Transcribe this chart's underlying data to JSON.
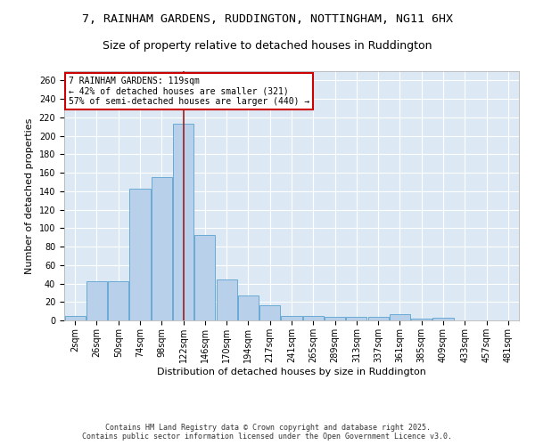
{
  "title_line1": "7, RAINHAM GARDENS, RUDDINGTON, NOTTINGHAM, NG11 6HX",
  "title_line2": "Size of property relative to detached houses in Ruddington",
  "xlabel": "Distribution of detached houses by size in Ruddington",
  "ylabel": "Number of detached properties",
  "bar_color": "#b8d0ea",
  "bar_edge_color": "#6aaad4",
  "background_color": "#dce9f5",
  "grid_color": "#ffffff",
  "vline_color": "#9b1c1c",
  "vline_x_index": 5,
  "categories": [
    "2sqm",
    "26sqm",
    "50sqm",
    "74sqm",
    "98sqm",
    "122sqm",
    "146sqm",
    "170sqm",
    "194sqm",
    "217sqm",
    "241sqm",
    "265sqm",
    "289sqm",
    "313sqm",
    "337sqm",
    "361sqm",
    "385sqm",
    "409sqm",
    "433sqm",
    "457sqm",
    "481sqm"
  ],
  "values": [
    5,
    42,
    42,
    143,
    155,
    213,
    93,
    44,
    27,
    16,
    5,
    5,
    4,
    4,
    4,
    7,
    2,
    3,
    0,
    0,
    0
  ],
  "ylim": [
    0,
    270
  ],
  "yticks": [
    0,
    20,
    40,
    60,
    80,
    100,
    120,
    140,
    160,
    180,
    200,
    220,
    240,
    260
  ],
  "annotation_text": "7 RAINHAM GARDENS: 119sqm\n← 42% of detached houses are smaller (321)\n57% of semi-detached houses are larger (440) →",
  "annotation_box_color": "#ffffff",
  "annotation_box_edge_color": "#cc0000",
  "footnote": "Contains HM Land Registry data © Crown copyright and database right 2025.\nContains public sector information licensed under the Open Government Licence v3.0.",
  "title_fontsize": 9.5,
  "subtitle_fontsize": 9,
  "axis_label_fontsize": 8,
  "tick_fontsize": 7,
  "annotation_fontsize": 7,
  "footnote_fontsize": 6
}
